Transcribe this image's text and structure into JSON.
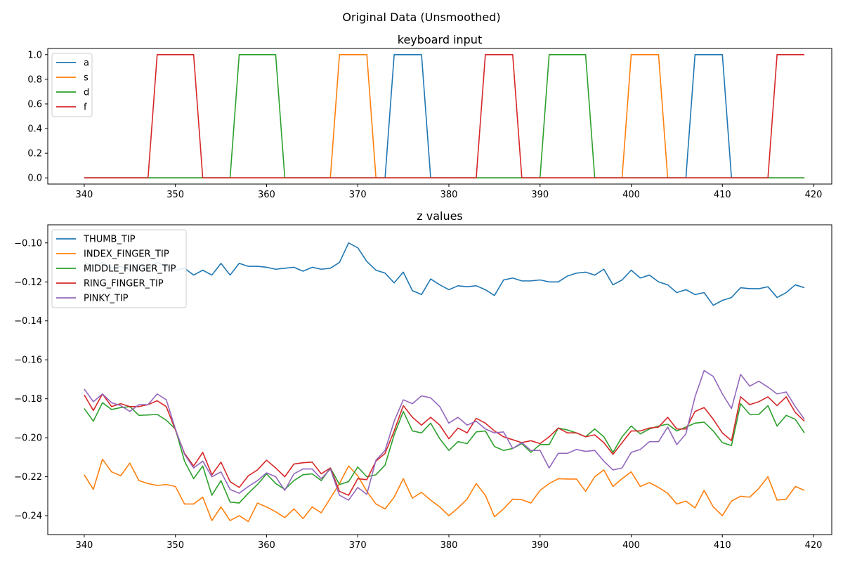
{
  "figure": {
    "title": "Original Data (Unsmoothed)"
  },
  "chart_data": [
    {
      "type": "line",
      "title": "keyboard input",
      "xlabel": "",
      "ylabel": "",
      "xlim": [
        336,
        422
      ],
      "ylim": [
        -0.05,
        1.05
      ],
      "xticks": [
        340,
        350,
        360,
        370,
        380,
        390,
        400,
        410,
        420
      ],
      "xtick_labels": [
        "340",
        "350",
        "360",
        "370",
        "380",
        "390",
        "400",
        "410",
        "420"
      ],
      "yticks": [
        0,
        0.2,
        0.4,
        0.6,
        0.8,
        1.0
      ],
      "ytick_labels": [
        "0.0",
        "0.2",
        "0.4",
        "0.6",
        "0.8",
        "1.0"
      ],
      "grid": false,
      "legend_position": "top-left",
      "x_start": 340,
      "series": [
        {
          "name": "a",
          "color": "#1f77b4",
          "values": [
            0,
            0,
            0,
            0,
            0,
            0,
            0,
            0,
            0,
            0,
            0,
            0,
            0,
            0,
            0,
            0,
            0,
            0,
            0,
            0,
            0,
            0,
            0,
            0,
            0,
            0,
            0,
            0,
            0,
            0,
            0,
            0,
            0,
            0,
            1,
            1,
            1,
            1,
            0,
            0,
            0,
            0,
            0,
            0,
            0,
            0,
            0,
            0,
            0,
            0,
            0,
            0,
            0,
            0,
            0,
            0,
            0,
            0,
            0,
            0,
            0,
            0,
            0,
            0,
            0,
            0,
            0,
            1,
            1,
            1,
            1,
            0,
            0,
            0,
            0,
            0,
            0,
            0,
            0,
            0
          ]
        },
        {
          "name": "s",
          "color": "#ff7f0e",
          "values": [
            0,
            0,
            0,
            0,
            0,
            0,
            0,
            0,
            0,
            0,
            0,
            0,
            0,
            0,
            0,
            0,
            0,
            0,
            0,
            0,
            0,
            0,
            0,
            0,
            0,
            0,
            0,
            0,
            1,
            1,
            1,
            1,
            0,
            0,
            0,
            0,
            0,
            0,
            0,
            0,
            0,
            0,
            0,
            0,
            0,
            0,
            0,
            0,
            0,
            0,
            0,
            0,
            0,
            0,
            0,
            0,
            0,
            0,
            0,
            0,
            1,
            1,
            1,
            1,
            0,
            0,
            0,
            0,
            0,
            0,
            0,
            0,
            0,
            0,
            0,
            0,
            0,
            0,
            0,
            0
          ]
        },
        {
          "name": "d",
          "color": "#2ca02c",
          "values": [
            0,
            0,
            0,
            0,
            0,
            0,
            0,
            0,
            0,
            0,
            0,
            0,
            0,
            0,
            0,
            0,
            0,
            1,
            1,
            1,
            1,
            1,
            0,
            0,
            0,
            0,
            0,
            0,
            0,
            0,
            0,
            0,
            0,
            0,
            0,
            0,
            0,
            0,
            0,
            0,
            0,
            0,
            0,
            0,
            0,
            0,
            0,
            0,
            0,
            0,
            0,
            1,
            1,
            1,
            1,
            1,
            0,
            0,
            0,
            0,
            0,
            0,
            0,
            0,
            0,
            0,
            0,
            0,
            0,
            0,
            0,
            0,
            0,
            0,
            0,
            0,
            0,
            0,
            0,
            0
          ]
        },
        {
          "name": "f",
          "color": "#d62728",
          "values": [
            0,
            0,
            0,
            0,
            0,
            0,
            0,
            0,
            1,
            1,
            1,
            1,
            1,
            0,
            0,
            0,
            0,
            0,
            0,
            0,
            0,
            0,
            0,
            0,
            0,
            0,
            0,
            0,
            0,
            0,
            0,
            0,
            0,
            0,
            0,
            0,
            0,
            0,
            0,
            0,
            0,
            0,
            0,
            0,
            1,
            1,
            1,
            1,
            0,
            0,
            0,
            0,
            0,
            0,
            0,
            0,
            0,
            0,
            0,
            0,
            0,
            0,
            0,
            0,
            0,
            0,
            0,
            0,
            0,
            0,
            0,
            0,
            0,
            0,
            0,
            0,
            1,
            1,
            1,
            1
          ]
        }
      ]
    },
    {
      "type": "line",
      "title": "z values",
      "xlabel": "",
      "ylabel": "",
      "xlim": [
        336,
        422
      ],
      "ylim": [
        -0.2497,
        -0.0907
      ],
      "xticks": [
        340,
        350,
        360,
        370,
        380,
        390,
        400,
        410,
        420
      ],
      "xtick_labels": [
        "340",
        "350",
        "360",
        "370",
        "380",
        "390",
        "400",
        "410",
        "420"
      ],
      "yticks": [
        -0.24,
        -0.22,
        -0.2,
        -0.18,
        -0.16,
        -0.14,
        -0.12,
        -0.1
      ],
      "ytick_labels": [
        "−0.24",
        "−0.22",
        "−0.20",
        "−0.18",
        "−0.16",
        "−0.14",
        "−0.12",
        "−0.10"
      ],
      "grid": false,
      "legend_position": "top-left",
      "x_start": 340,
      "series": [
        {
          "name": "THUMB_TIP",
          "color": "#1f77b4",
          "values": [
            -0.11,
            -0.112,
            -0.11,
            -0.113,
            -0.112,
            -0.114,
            -0.111,
            -0.113,
            -0.11,
            -0.112,
            -0.114,
            -0.113,
            -0.1165,
            -0.114,
            -0.1165,
            -0.1105,
            -0.1165,
            -0.1105,
            -0.112,
            -0.112,
            -0.1125,
            -0.1135,
            -0.113,
            -0.1125,
            -0.1145,
            -0.1125,
            -0.1135,
            -0.113,
            -0.11,
            -0.1,
            -0.1025,
            -0.1095,
            -0.114,
            -0.1155,
            -0.1205,
            -0.115,
            -0.1245,
            -0.1265,
            -0.1185,
            -0.1215,
            -0.124,
            -0.122,
            -0.1225,
            -0.122,
            -0.124,
            -0.127,
            -0.119,
            -0.118,
            -0.1195,
            -0.1195,
            -0.119,
            -0.12,
            -0.12,
            -0.117,
            -0.1155,
            -0.115,
            -0.1165,
            -0.1135,
            -0.1215,
            -0.119,
            -0.114,
            -0.118,
            -0.1165,
            -0.12,
            -0.1215,
            -0.1255,
            -0.124,
            -0.1265,
            -0.1255,
            -0.132,
            -0.1295,
            -0.128,
            -0.123,
            -0.1235,
            -0.1235,
            -0.1225,
            -0.128,
            -0.1255,
            -0.1215,
            -0.123
          ]
        },
        {
          "name": "INDEX_FINGER_TIP",
          "color": "#ff7f0e",
          "values": [
            -0.219,
            -0.2265,
            -0.211,
            -0.2175,
            -0.2195,
            -0.213,
            -0.222,
            -0.2235,
            -0.2245,
            -0.224,
            -0.225,
            -0.234,
            -0.234,
            -0.2305,
            -0.2425,
            -0.2355,
            -0.2425,
            -0.24,
            -0.243,
            -0.2335,
            -0.2355,
            -0.238,
            -0.241,
            -0.2365,
            -0.2415,
            -0.2355,
            -0.2385,
            -0.231,
            -0.2235,
            -0.2145,
            -0.2195,
            -0.2275,
            -0.234,
            -0.2365,
            -0.2305,
            -0.221,
            -0.231,
            -0.228,
            -0.232,
            -0.2355,
            -0.24,
            -0.236,
            -0.2315,
            -0.2235,
            -0.2295,
            -0.2405,
            -0.2365,
            -0.2315,
            -0.2318,
            -0.2335,
            -0.227,
            -0.2235,
            -0.221,
            -0.2212,
            -0.2212,
            -0.2275,
            -0.22,
            -0.2165,
            -0.225,
            -0.221,
            -0.2175,
            -0.225,
            -0.223,
            -0.2255,
            -0.2285,
            -0.234,
            -0.2325,
            -0.236,
            -0.227,
            -0.2355,
            -0.24,
            -0.2325,
            -0.23,
            -0.2305,
            -0.226,
            -0.22,
            -0.232,
            -0.2315,
            -0.225,
            -0.227
          ]
        },
        {
          "name": "MIDDLE_FINGER_TIP",
          "color": "#2ca02c",
          "values": [
            -0.185,
            -0.1915,
            -0.182,
            -0.1855,
            -0.1845,
            -0.184,
            -0.1885,
            -0.1883,
            -0.188,
            -0.191,
            -0.1955,
            -0.212,
            -0.221,
            -0.2145,
            -0.2295,
            -0.222,
            -0.233,
            -0.2335,
            -0.2285,
            -0.224,
            -0.2185,
            -0.2235,
            -0.2265,
            -0.222,
            -0.219,
            -0.2185,
            -0.222,
            -0.2155,
            -0.224,
            -0.2225,
            -0.215,
            -0.22,
            -0.219,
            -0.214,
            -0.1985,
            -0.1865,
            -0.1965,
            -0.1975,
            -0.1925,
            -0.2005,
            -0.2065,
            -0.202,
            -0.203,
            -0.197,
            -0.1965,
            -0.2045,
            -0.2065,
            -0.2055,
            -0.203,
            -0.2075,
            -0.2035,
            -0.2035,
            -0.195,
            -0.196,
            -0.1975,
            -0.1995,
            -0.1955,
            -0.1995,
            -0.2075,
            -0.1995,
            -0.194,
            -0.198,
            -0.1955,
            -0.194,
            -0.193,
            -0.1965,
            -0.1945,
            -0.1925,
            -0.192,
            -0.1965,
            -0.2025,
            -0.204,
            -0.1825,
            -0.188,
            -0.188,
            -0.1835,
            -0.194,
            -0.1885,
            -0.1905,
            -0.1975
          ]
        },
        {
          "name": "RING_FINGER_TIP",
          "color": "#d62728",
          "values": [
            -0.178,
            -0.186,
            -0.1775,
            -0.184,
            -0.1825,
            -0.184,
            -0.184,
            -0.183,
            -0.181,
            -0.184,
            -0.196,
            -0.208,
            -0.2145,
            -0.2075,
            -0.219,
            -0.2125,
            -0.2225,
            -0.2255,
            -0.2195,
            -0.2165,
            -0.2115,
            -0.2155,
            -0.22,
            -0.2135,
            -0.2128,
            -0.2125,
            -0.2185,
            -0.2155,
            -0.2275,
            -0.2295,
            -0.221,
            -0.2215,
            -0.212,
            -0.208,
            -0.1965,
            -0.1835,
            -0.1895,
            -0.1935,
            -0.1895,
            -0.1935,
            -0.2005,
            -0.195,
            -0.1975,
            -0.19,
            -0.1925,
            -0.1965,
            -0.1995,
            -0.201,
            -0.2025,
            -0.2015,
            -0.203,
            -0.1995,
            -0.195,
            -0.1975,
            -0.1975,
            -0.1995,
            -0.1985,
            -0.2025,
            -0.2085,
            -0.2025,
            -0.1965,
            -0.1965,
            -0.195,
            -0.1945,
            -0.1895,
            -0.1955,
            -0.1955,
            -0.1865,
            -0.1845,
            -0.1905,
            -0.1975,
            -0.2015,
            -0.179,
            -0.183,
            -0.1815,
            -0.179,
            -0.1835,
            -0.179,
            -0.187,
            -0.1915
          ]
        },
        {
          "name": "PINKY_TIP",
          "color": "#9467bd",
          "values": [
            -0.175,
            -0.1815,
            -0.1775,
            -0.182,
            -0.1835,
            -0.1865,
            -0.183,
            -0.183,
            -0.1775,
            -0.1805,
            -0.1955,
            -0.2085,
            -0.2155,
            -0.212,
            -0.22,
            -0.2175,
            -0.2265,
            -0.2285,
            -0.225,
            -0.222,
            -0.218,
            -0.22,
            -0.227,
            -0.2185,
            -0.216,
            -0.216,
            -0.221,
            -0.216,
            -0.2295,
            -0.232,
            -0.2255,
            -0.229,
            -0.2115,
            -0.2065,
            -0.1915,
            -0.1805,
            -0.1825,
            -0.1785,
            -0.1795,
            -0.184,
            -0.1925,
            -0.1895,
            -0.1935,
            -0.1915,
            -0.1955,
            -0.1975,
            -0.197,
            -0.2055,
            -0.2025,
            -0.2065,
            -0.2065,
            -0.2155,
            -0.208,
            -0.208,
            -0.206,
            -0.207,
            -0.2065,
            -0.212,
            -0.2165,
            -0.2155,
            -0.2075,
            -0.206,
            -0.202,
            -0.202,
            -0.1945,
            -0.2035,
            -0.198,
            -0.179,
            -0.1655,
            -0.1685,
            -0.1775,
            -0.185,
            -0.1675,
            -0.1735,
            -0.171,
            -0.174,
            -0.1775,
            -0.1765,
            -0.184,
            -0.1905
          ]
        }
      ]
    }
  ]
}
